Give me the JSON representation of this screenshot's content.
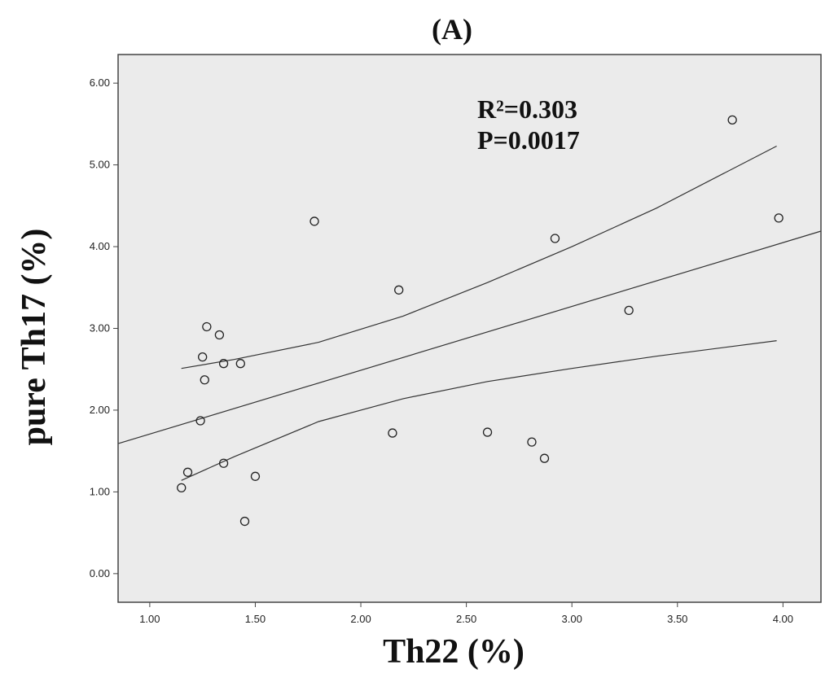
{
  "chart_data": {
    "type": "scatter",
    "title": "(A)",
    "xlabel": "Th22 (%)",
    "ylabel": "pure Th17 (%)",
    "xlim": [
      0.85,
      4.18
    ],
    "ylim": [
      -0.35,
      6.35
    ],
    "x_ticks": [
      "1.00",
      "1.50",
      "2.00",
      "2.50",
      "3.00",
      "3.50",
      "4.00"
    ],
    "y_ticks": [
      "0.00",
      "1.00",
      "2.00",
      "3.00",
      "4.00",
      "5.00",
      "6.00"
    ],
    "grid": false,
    "background": "#ebebeb",
    "points": [
      {
        "x": 1.15,
        "y": 1.05
      },
      {
        "x": 1.18,
        "y": 1.24
      },
      {
        "x": 1.24,
        "y": 1.87
      },
      {
        "x": 1.25,
        "y": 2.65
      },
      {
        "x": 1.26,
        "y": 2.37
      },
      {
        "x": 1.27,
        "y": 3.02
      },
      {
        "x": 1.33,
        "y": 2.92
      },
      {
        "x": 1.35,
        "y": 2.57
      },
      {
        "x": 1.35,
        "y": 1.35
      },
      {
        "x": 1.43,
        "y": 2.57
      },
      {
        "x": 1.45,
        "y": 0.64
      },
      {
        "x": 1.5,
        "y": 1.19
      },
      {
        "x": 1.78,
        "y": 4.31
      },
      {
        "x": 2.15,
        "y": 1.72
      },
      {
        "x": 2.18,
        "y": 3.47
      },
      {
        "x": 2.6,
        "y": 1.73
      },
      {
        "x": 2.81,
        "y": 1.61
      },
      {
        "x": 2.87,
        "y": 1.41
      },
      {
        "x": 2.92,
        "y": 4.1
      },
      {
        "x": 3.27,
        "y": 3.22
      },
      {
        "x": 3.76,
        "y": 5.55
      },
      {
        "x": 3.98,
        "y": 4.35
      }
    ],
    "fit_line": [
      {
        "x": 0.85,
        "y": 1.59
      },
      {
        "x": 4.18,
        "y": 4.19
      }
    ],
    "ci_upper": [
      {
        "x": 1.15,
        "y": 2.51
      },
      {
        "x": 1.4,
        "y": 2.62
      },
      {
        "x": 1.8,
        "y": 2.83
      },
      {
        "x": 2.2,
        "y": 3.15
      },
      {
        "x": 2.6,
        "y": 3.56
      },
      {
        "x": 3.0,
        "y": 4.0
      },
      {
        "x": 3.4,
        "y": 4.47
      },
      {
        "x": 3.97,
        "y": 5.23
      }
    ],
    "ci_lower": [
      {
        "x": 1.15,
        "y": 1.14
      },
      {
        "x": 1.4,
        "y": 1.43
      },
      {
        "x": 1.8,
        "y": 1.86
      },
      {
        "x": 2.2,
        "y": 2.14
      },
      {
        "x": 2.6,
        "y": 2.35
      },
      {
        "x": 3.0,
        "y": 2.51
      },
      {
        "x": 3.4,
        "y": 2.66
      },
      {
        "x": 3.97,
        "y": 2.85
      }
    ],
    "annotations": [
      "R²=0.303",
      "P=0.0017"
    ]
  }
}
